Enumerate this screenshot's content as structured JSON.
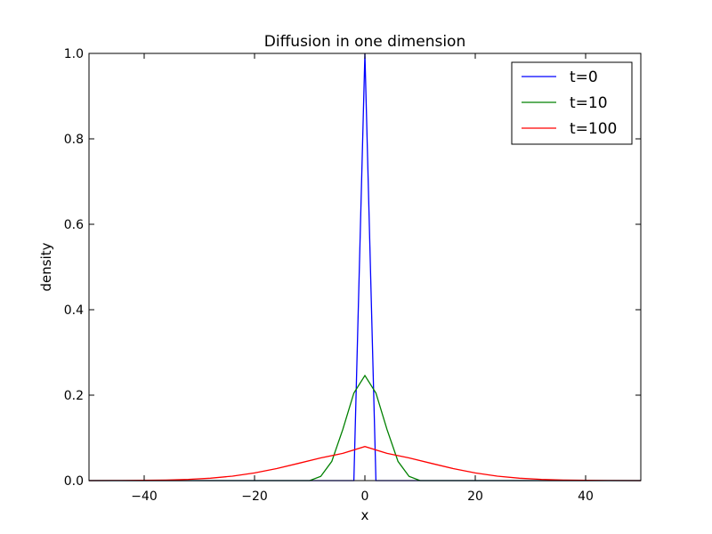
{
  "chart_data": {
    "type": "line",
    "title": "Diffusion in one dimension",
    "xlabel": "x",
    "ylabel": "density",
    "xlim": [
      -50,
      50
    ],
    "ylim": [
      0.0,
      1.0
    ],
    "xticks": [
      -40,
      -20,
      0,
      20,
      40
    ],
    "xtick_labels": [
      "−40",
      "−20",
      "0",
      "20",
      "40"
    ],
    "yticks": [
      0.0,
      0.2,
      0.4,
      0.6,
      0.8,
      1.0
    ],
    "ytick_labels": [
      "0.0",
      "0.2",
      "0.4",
      "0.6",
      "0.8",
      "1.0"
    ],
    "grid": false,
    "legend_position": "top-right",
    "series": [
      {
        "name": "t=0",
        "color": "#0000ff",
        "x": [
          -50,
          -2,
          0,
          2,
          50
        ],
        "y": [
          0,
          0,
          1.0,
          0,
          0
        ]
      },
      {
        "name": "t=10",
        "color": "#008000",
        "x": [
          -50,
          -12,
          -10,
          -8,
          -6,
          -4,
          -2,
          0,
          2,
          4,
          6,
          8,
          10,
          12,
          50
        ],
        "y": [
          0,
          0,
          0.0,
          0.01,
          0.045,
          0.12,
          0.205,
          0.246,
          0.205,
          0.12,
          0.045,
          0.01,
          0.0,
          0,
          0
        ]
      },
      {
        "name": "t=100",
        "color": "#ff0000",
        "x": [
          -50,
          -44,
          -40,
          -36,
          -32,
          -28,
          -24,
          -20,
          -16,
          -12,
          -8,
          -4,
          0,
          4,
          8,
          12,
          16,
          20,
          24,
          28,
          32,
          36,
          40,
          44,
          50
        ],
        "y": [
          0.0,
          0.0003,
          0.0006,
          0.0013,
          0.0028,
          0.0056,
          0.0105,
          0.018,
          0.0282,
          0.0405,
          0.0532,
          0.0637,
          0.0798,
          0.0637,
          0.0532,
          0.0405,
          0.0282,
          0.018,
          0.0105,
          0.0056,
          0.0028,
          0.0013,
          0.0006,
          0.0003,
          0.0
        ]
      }
    ]
  }
}
